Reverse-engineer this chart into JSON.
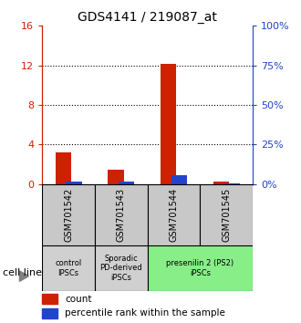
{
  "title": "GDS4141 / 219087_at",
  "samples": [
    "GSM701542",
    "GSM701543",
    "GSM701544",
    "GSM701545"
  ],
  "count_values": [
    3.2,
    1.5,
    12.2,
    0.3
  ],
  "percentile_values": [
    1.6,
    1.4,
    5.4,
    0.5
  ],
  "ylim_left": [
    0,
    16
  ],
  "ylim_right": [
    0,
    100
  ],
  "yticks_left": [
    0,
    4,
    8,
    12,
    16
  ],
  "yticks_right": [
    0,
    25,
    50,
    75,
    100
  ],
  "ytick_labels_left": [
    "0",
    "4",
    "8",
    "12",
    "16"
  ],
  "ytick_labels_right": [
    "0%",
    "25%",
    "50%",
    "75%",
    "100%"
  ],
  "bar_width": 0.3,
  "count_color": "#cc2200",
  "percentile_color": "#2244cc",
  "cell_groups": [
    {
      "label": "control\nIPSCs",
      "start": 0,
      "end": 1,
      "color": "#d0d0d0"
    },
    {
      "label": "Sporadic\nPD-derived\niPSCs",
      "start": 1,
      "end": 2,
      "color": "#d0d0d0"
    },
    {
      "label": "presenilin 2 (PS2)\niPSCs",
      "start": 2,
      "end": 4,
      "color": "#88ee88"
    }
  ],
  "sample_box_color": "#c8c8c8",
  "xlabel": "cell line",
  "legend_count_label": "count",
  "legend_percentile_label": "percentile rank within the sample",
  "dotted_yticks": [
    4,
    8,
    12
  ]
}
